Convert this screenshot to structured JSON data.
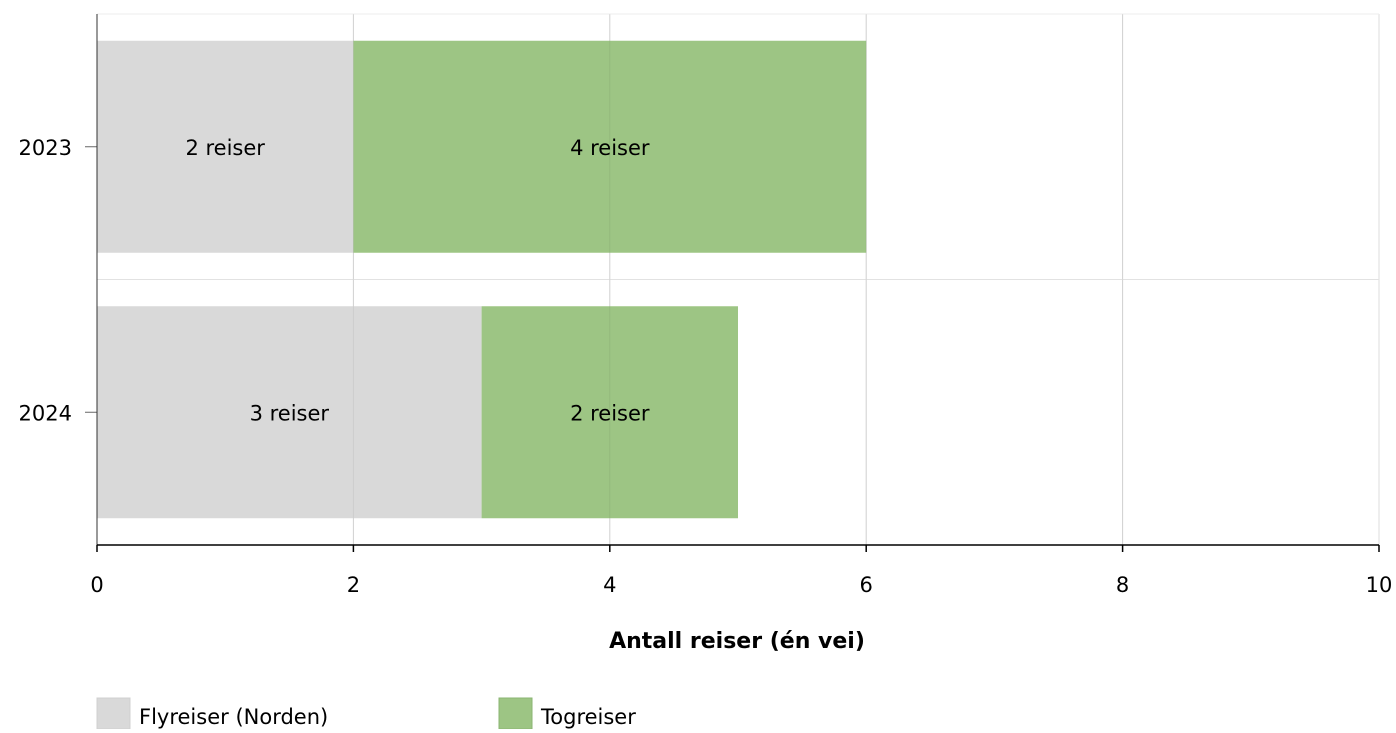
{
  "chart_data": {
    "type": "bar",
    "orientation": "horizontal",
    "stacked": true,
    "categories": [
      "2023",
      "2024"
    ],
    "series": [
      {
        "name": "Flyreiser (Norden)",
        "color": "#d9d9d9",
        "values": [
          2,
          3
        ],
        "labels": [
          "2 reiser",
          "3 reiser"
        ]
      },
      {
        "name": "Togreiser",
        "color": "#9dc584",
        "values": [
          4,
          2
        ],
        "labels": [
          "4 reiser",
          "2 reiser"
        ]
      }
    ],
    "xlabel": "Antall reiser (én vei)",
    "ylabel": "",
    "xlim": [
      0,
      10
    ],
    "xticks": [
      "0",
      "2",
      "4",
      "6",
      "8",
      "10"
    ],
    "grid": true,
    "legend_position": "bottom-left"
  }
}
